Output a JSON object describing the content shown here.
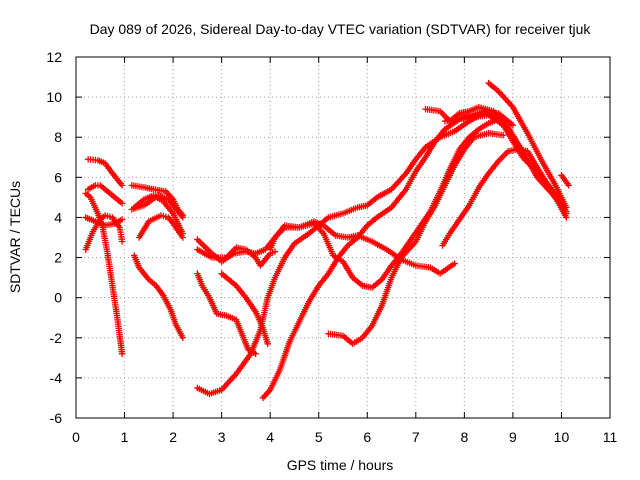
{
  "chart_data": {
    "type": "scatter",
    "title": "Day 089 of 2026, Sidereal Day-to-day VTEC variation (SDTVAR) for receiver tjuk",
    "xlabel": "GPS time / hours",
    "ylabel": "SDTVAR / TECUs",
    "xlim": [
      0,
      11
    ],
    "ylim": [
      -6,
      12
    ],
    "x_ticks": [
      "0",
      "1",
      "2",
      "3",
      "4",
      "5",
      "6",
      "7",
      "8",
      "9",
      "10",
      "11"
    ],
    "y_ticks": [
      "-6",
      "-4",
      "-2",
      "0",
      "2",
      "4",
      "6",
      "8",
      "10",
      "12"
    ],
    "grid": true,
    "marker": "+",
    "color": "#ff0000",
    "series": [
      {
        "points": [
          [
            0.25,
            6.9
          ],
          [
            0.45,
            6.85
          ],
          [
            0.6,
            6.7
          ],
          [
            0.75,
            6.2
          ],
          [
            0.95,
            5.6
          ]
        ]
      },
      {
        "points": [
          [
            0.25,
            5.4
          ],
          [
            0.4,
            5.6
          ],
          [
            0.5,
            5.6
          ],
          [
            0.7,
            5.2
          ],
          [
            0.95,
            4.7
          ]
        ]
      },
      {
        "points": [
          [
            0.2,
            5.2
          ],
          [
            0.3,
            5.0
          ],
          [
            0.45,
            4.2
          ],
          [
            0.55,
            3.5
          ],
          [
            0.65,
            2.2
          ],
          [
            0.75,
            0.6
          ],
          [
            0.85,
            -1.0
          ],
          [
            0.95,
            -2.8
          ]
        ]
      },
      {
        "points": [
          [
            0.2,
            2.4
          ],
          [
            0.35,
            3.3
          ],
          [
            0.5,
            3.9
          ],
          [
            0.6,
            4.1
          ],
          [
            0.75,
            4.0
          ],
          [
            0.9,
            3.5
          ],
          [
            0.95,
            2.8
          ]
        ]
      },
      {
        "points": [
          [
            0.2,
            4.0
          ],
          [
            0.4,
            3.8
          ],
          [
            0.6,
            3.6
          ],
          [
            0.8,
            3.7
          ],
          [
            0.95,
            3.9
          ]
        ]
      },
      {
        "points": [
          [
            1.15,
            5.6
          ],
          [
            1.4,
            5.5
          ],
          [
            1.6,
            5.4
          ],
          [
            1.85,
            5.3
          ],
          [
            2.0,
            4.9
          ],
          [
            2.1,
            4.4
          ],
          [
            2.2,
            4.1
          ]
        ]
      },
      {
        "points": [
          [
            1.2,
            4.5
          ],
          [
            1.4,
            4.9
          ],
          [
            1.6,
            5.1
          ],
          [
            1.8,
            4.8
          ],
          [
            2.0,
            4.2
          ],
          [
            2.2,
            3.2
          ]
        ]
      },
      {
        "points": [
          [
            1.15,
            4.4
          ],
          [
            1.4,
            4.6
          ],
          [
            1.7,
            5.1
          ],
          [
            1.9,
            4.9
          ],
          [
            2.2,
            4.0
          ]
        ]
      },
      {
        "points": [
          [
            1.3,
            3.0
          ],
          [
            1.5,
            3.8
          ],
          [
            1.75,
            4.1
          ],
          [
            1.9,
            4.0
          ],
          [
            2.0,
            3.7
          ],
          [
            2.2,
            3.0
          ]
        ]
      },
      {
        "points": [
          [
            1.2,
            2.1
          ],
          [
            1.3,
            1.5
          ],
          [
            1.5,
            0.9
          ],
          [
            1.65,
            0.6
          ],
          [
            1.8,
            0.1
          ],
          [
            1.95,
            -0.6
          ],
          [
            2.05,
            -1.3
          ],
          [
            2.2,
            -2.0
          ]
        ]
      },
      {
        "points": [
          [
            2.5,
            2.9
          ],
          [
            2.8,
            2.2
          ],
          [
            3.0,
            1.8
          ],
          [
            3.25,
            2.2
          ],
          [
            3.5,
            2.3
          ],
          [
            3.7,
            2.2
          ],
          [
            3.9,
            2.4
          ],
          [
            4.1,
            3.0
          ],
          [
            4.3,
            3.5
          ],
          [
            4.6,
            3.5
          ],
          [
            4.9,
            3.8
          ],
          [
            5.1,
            3.6
          ],
          [
            5.35,
            3.1
          ],
          [
            5.6,
            3.0
          ],
          [
            5.8,
            3.1
          ],
          [
            6.1,
            2.8
          ],
          [
            6.4,
            2.4
          ],
          [
            6.7,
            1.9
          ],
          [
            7.0,
            1.6
          ],
          [
            7.3,
            1.5
          ],
          [
            7.5,
            1.2
          ],
          [
            7.8,
            1.7
          ]
        ]
      },
      {
        "points": [
          [
            2.5,
            2.4
          ],
          [
            2.8,
            2.0
          ],
          [
            3.1,
            2.0
          ],
          [
            3.3,
            2.5
          ],
          [
            3.5,
            2.4
          ],
          [
            3.7,
            2.0
          ],
          [
            3.8,
            1.6
          ],
          [
            4.0,
            2.2
          ],
          [
            4.1,
            2.3
          ]
        ]
      },
      {
        "points": [
          [
            2.5,
            1.2
          ],
          [
            2.6,
            0.6
          ],
          [
            2.75,
            0.0
          ],
          [
            2.9,
            -0.8
          ],
          [
            3.1,
            -0.9
          ],
          [
            3.3,
            -1.1
          ],
          [
            3.45,
            -2.0
          ],
          [
            3.55,
            -2.6
          ],
          [
            3.7,
            -2.8
          ]
        ]
      },
      {
        "points": [
          [
            3.0,
            1.2
          ],
          [
            3.3,
            0.6
          ],
          [
            3.5,
            0.0
          ],
          [
            3.7,
            -0.7
          ],
          [
            3.85,
            -1.5
          ],
          [
            3.95,
            -2.3
          ]
        ]
      },
      {
        "points": [
          [
            2.5,
            -4.5
          ],
          [
            2.75,
            -4.8
          ],
          [
            3.0,
            -4.6
          ],
          [
            3.3,
            -3.8
          ],
          [
            3.6,
            -2.8
          ],
          [
            3.8,
            -1.6
          ],
          [
            3.95,
            0.0
          ],
          [
            4.1,
            1.0
          ],
          [
            4.3,
            2.0
          ],
          [
            4.5,
            2.7
          ],
          [
            4.8,
            3.2
          ],
          [
            5.0,
            3.6
          ],
          [
            5.2,
            4.0
          ],
          [
            5.5,
            4.2
          ],
          [
            5.8,
            4.5
          ],
          [
            6.0,
            4.6
          ],
          [
            6.2,
            5.0
          ],
          [
            6.5,
            5.4
          ],
          [
            6.8,
            6.2
          ],
          [
            7.0,
            6.9
          ],
          [
            7.2,
            7.5
          ],
          [
            7.5,
            8.0
          ],
          [
            7.8,
            8.3
          ],
          [
            8.1,
            8.8
          ],
          [
            8.4,
            9.2
          ],
          [
            8.7,
            9.2
          ],
          [
            9.0,
            8.6
          ]
        ]
      },
      {
        "points": [
          [
            3.85,
            -5.0
          ],
          [
            4.0,
            -4.6
          ],
          [
            4.2,
            -3.6
          ],
          [
            4.4,
            -2.2
          ],
          [
            4.6,
            -1.2
          ],
          [
            4.8,
            -0.2
          ],
          [
            5.0,
            0.6
          ],
          [
            5.2,
            1.2
          ],
          [
            5.4,
            2.0
          ],
          [
            5.6,
            2.6
          ],
          [
            5.8,
            3.0
          ],
          [
            6.0,
            3.6
          ],
          [
            6.2,
            4.0
          ],
          [
            6.5,
            4.5
          ],
          [
            6.8,
            5.4
          ],
          [
            7.0,
            6.3
          ],
          [
            7.2,
            7.0
          ],
          [
            7.4,
            7.8
          ],
          [
            7.6,
            8.4
          ],
          [
            7.9,
            8.9
          ],
          [
            8.2,
            9.0
          ],
          [
            8.5,
            9.1
          ],
          [
            8.8,
            8.7
          ]
        ]
      },
      {
        "points": [
          [
            4.0,
            2.4
          ],
          [
            4.1,
            3.0
          ],
          [
            4.3,
            3.6
          ],
          [
            4.6,
            3.5
          ],
          [
            4.9,
            3.7
          ],
          [
            5.1,
            3.2
          ],
          [
            5.3,
            2.1
          ],
          [
            5.5,
            1.8
          ],
          [
            5.7,
            1.0
          ],
          [
            5.9,
            0.6
          ],
          [
            6.1,
            0.5
          ],
          [
            6.3,
            0.9
          ],
          [
            6.5,
            1.6
          ],
          [
            6.7,
            2.2
          ],
          [
            6.9,
            2.9
          ],
          [
            7.1,
            3.6
          ],
          [
            7.3,
            4.3
          ],
          [
            7.5,
            5.3
          ],
          [
            7.7,
            6.4
          ],
          [
            7.9,
            7.4
          ],
          [
            8.1,
            8.0
          ],
          [
            8.3,
            8.4
          ],
          [
            8.5,
            8.7
          ],
          [
            8.7,
            8.9
          ]
        ]
      },
      {
        "points": [
          [
            5.2,
            -1.8
          ],
          [
            5.5,
            -1.9
          ],
          [
            5.7,
            -2.3
          ],
          [
            5.9,
            -2.0
          ],
          [
            6.1,
            -1.4
          ],
          [
            6.3,
            -0.4
          ],
          [
            6.5,
            1.0
          ],
          [
            6.7,
            2.0
          ],
          [
            7.0,
            2.8
          ],
          [
            7.2,
            3.8
          ],
          [
            7.4,
            4.6
          ],
          [
            7.6,
            5.6
          ],
          [
            7.8,
            6.6
          ],
          [
            8.0,
            7.4
          ],
          [
            8.2,
            8.0
          ],
          [
            8.5,
            8.2
          ],
          [
            8.8,
            8.1
          ]
        ]
      },
      {
        "points": [
          [
            7.55,
            2.6
          ],
          [
            7.7,
            3.2
          ],
          [
            7.9,
            3.9
          ],
          [
            8.1,
            4.6
          ],
          [
            8.3,
            5.5
          ],
          [
            8.5,
            6.2
          ],
          [
            8.7,
            6.8
          ],
          [
            8.9,
            7.3
          ],
          [
            9.1,
            7.4
          ],
          [
            9.3,
            7.3
          ],
          [
            9.5,
            6.5
          ],
          [
            9.7,
            5.7
          ],
          [
            9.9,
            4.9
          ],
          [
            10.1,
            4.0
          ]
        ]
      },
      {
        "points": [
          [
            7.2,
            9.4
          ],
          [
            7.5,
            9.3
          ],
          [
            7.7,
            8.8
          ],
          [
            7.9,
            9.2
          ],
          [
            8.1,
            9.3
          ],
          [
            8.3,
            9.5
          ],
          [
            8.6,
            9.3
          ],
          [
            8.9,
            8.5
          ],
          [
            9.2,
            7.3
          ],
          [
            9.5,
            6.0
          ],
          [
            9.8,
            5.2
          ],
          [
            10.1,
            4.3
          ]
        ]
      },
      {
        "points": [
          [
            8.5,
            10.7
          ],
          [
            8.7,
            10.3
          ],
          [
            9.0,
            9.5
          ],
          [
            9.3,
            8.2
          ],
          [
            9.6,
            6.8
          ],
          [
            9.9,
            5.5
          ],
          [
            10.1,
            4.5
          ]
        ]
      },
      {
        "points": [
          [
            7.6,
            8.8
          ],
          [
            8.0,
            9.0
          ],
          [
            8.4,
            9.3
          ],
          [
            8.8,
            8.6
          ],
          [
            9.2,
            7.0
          ],
          [
            9.6,
            6.0
          ],
          [
            10.0,
            4.8
          ],
          [
            10.1,
            4.2
          ]
        ]
      },
      {
        "points": [
          [
            10.0,
            6.1
          ],
          [
            10.15,
            5.6
          ]
        ]
      }
    ]
  }
}
